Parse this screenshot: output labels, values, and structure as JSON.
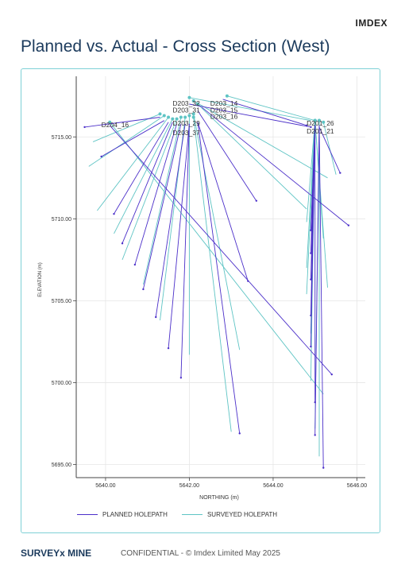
{
  "header": {
    "brand": "IMDEX",
    "title": "Planned vs. Actual - Cross Section (West)"
  },
  "footer": {
    "brand": "SURVEYx MINE",
    "text": "CONFIDENTIAL - © Imdex Limited May 2025"
  },
  "legend": {
    "planned": "PLANNED HOLEPATH",
    "surveyed": "SURVEYED HOLEPATH"
  },
  "colors": {
    "planned": "#4b2fc9",
    "surveyed": "#5ec4c4",
    "grid": "#e6e6e6",
    "axis": "#444444",
    "frame": "#7fd1d6"
  },
  "chart_data": {
    "type": "line",
    "title": "",
    "xlabel": "NORTHING (m)",
    "ylabel": "ELEVATION (m)",
    "xlim": [
      5639.3,
      5646.2
    ],
    "ylim": [
      5694.2,
      5718.7
    ],
    "xticks": [
      5640.0,
      5642.0,
      5644.0,
      5646.0
    ],
    "yticks": [
      5695.0,
      5700.0,
      5705.0,
      5710.0,
      5715.0
    ],
    "xtick_labels": [
      "5640.00",
      "5642.00",
      "5644.00",
      "5646.00"
    ],
    "ytick_labels": [
      "5695.00",
      "5700.00",
      "5705.00",
      "5710.00",
      "5715.00"
    ],
    "grid": true,
    "legend_position": "bottom",
    "collar_labels": [
      {
        "text": "D203_32",
        "x": 5641.6,
        "y": 5716.9
      },
      {
        "text": "D203_14",
        "x": 5642.5,
        "y": 5716.9
      },
      {
        "text": "D203_31",
        "x": 5641.6,
        "y": 5716.5
      },
      {
        "text": "D203_15",
        "x": 5642.5,
        "y": 5716.5
      },
      {
        "text": "D203_16",
        "x": 5642.5,
        "y": 5716.1
      },
      {
        "text": "D204_16",
        "x": 5639.9,
        "y": 5715.6
      },
      {
        "text": "D203_29",
        "x": 5641.6,
        "y": 5715.7
      },
      {
        "text": "D201_26",
        "x": 5644.8,
        "y": 5715.7
      },
      {
        "text": "D201_21",
        "x": 5644.8,
        "y": 5715.2
      },
      {
        "text": "D203_37",
        "x": 5641.6,
        "y": 5715.1
      }
    ],
    "series": [
      {
        "name": "PLANNED HOLEPATH",
        "paths": [
          [
            [
              5642.3,
              5716.8
            ],
            [
              5645.8,
              5709.6
            ]
          ],
          [
            [
              5642.2,
              5716.6
            ],
            [
              5643.6,
              5711.1
            ]
          ],
          [
            [
              5642.2,
              5715.9
            ],
            [
              5643.4,
              5706.2
            ]
          ],
          [
            [
              5642.2,
              5715.9
            ],
            [
              5643.2,
              5696.9
            ]
          ],
          [
            [
              5642.0,
              5715.8
            ],
            [
              5641.8,
              5700.3
            ]
          ],
          [
            [
              5642.0,
              5715.8
            ],
            [
              5641.5,
              5702.1
            ]
          ],
          [
            [
              5641.9,
              5715.8
            ],
            [
              5641.2,
              5704.0
            ]
          ],
          [
            [
              5641.8,
              5715.8
            ],
            [
              5640.9,
              5705.7
            ]
          ],
          [
            [
              5641.7,
              5715.8
            ],
            [
              5640.7,
              5707.2
            ]
          ],
          [
            [
              5641.6,
              5715.9
            ],
            [
              5640.4,
              5708.5
            ]
          ],
          [
            [
              5641.5,
              5715.9
            ],
            [
              5640.2,
              5710.3
            ]
          ],
          [
            [
              5641.4,
              5716.0
            ],
            [
              5639.9,
              5713.8
            ]
          ],
          [
            [
              5641.3,
              5716.2
            ],
            [
              5639.5,
              5715.6
            ]
          ],
          [
            [
              5640.1,
              5715.7
            ],
            [
              5645.4,
              5700.5
            ]
          ],
          [
            [
              5645.1,
              5715.7
            ],
            [
              5645.2,
              5694.8
            ]
          ],
          [
            [
              5645.1,
              5715.7
            ],
            [
              5645.0,
              5696.8
            ]
          ],
          [
            [
              5645.0,
              5715.7
            ],
            [
              5645.0,
              5698.8
            ]
          ],
          [
            [
              5645.0,
              5715.7
            ],
            [
              5644.9,
              5702.2
            ]
          ],
          [
            [
              5645.0,
              5715.7
            ],
            [
              5644.9,
              5704.1
            ]
          ],
          [
            [
              5645.0,
              5715.7
            ],
            [
              5644.9,
              5706.3
            ]
          ],
          [
            [
              5645.0,
              5715.7
            ],
            [
              5644.9,
              5707.9
            ]
          ],
          [
            [
              5645.0,
              5715.7
            ],
            [
              5644.9,
              5709.3
            ]
          ],
          [
            [
              5642.0,
              5717.0
            ],
            [
              5644.9,
              5715.6
            ]
          ],
          [
            [
              5642.8,
              5717.3
            ],
            [
              5644.8,
              5715.7
            ]
          ],
          [
            [
              5645.1,
              5715.6
            ],
            [
              5645.6,
              5712.8
            ]
          ]
        ]
      },
      {
        "name": "SURVEYED HOLEPATH",
        "paths": [
          [
            [
              5642.1,
              5717.2
            ],
            [
              5645.3,
              5712.5
            ]
          ],
          [
            [
              5642.2,
              5717.0
            ],
            [
              5644.8,
              5710.6
            ]
          ],
          [
            [
              5642.1,
              5716.4
            ],
            [
              5643.2,
              5702.0
            ]
          ],
          [
            [
              5642.1,
              5716.2
            ],
            [
              5643.0,
              5697.0
            ]
          ],
          [
            [
              5642.0,
              5716.3
            ],
            [
              5642.0,
              5701.7
            ]
          ],
          [
            [
              5641.9,
              5716.2
            ],
            [
              5641.3,
              5703.8
            ]
          ],
          [
            [
              5641.8,
              5716.2
            ],
            [
              5640.9,
              5706.0
            ]
          ],
          [
            [
              5641.7,
              5716.1
            ],
            [
              5640.4,
              5707.5
            ]
          ],
          [
            [
              5641.6,
              5716.1
            ],
            [
              5640.2,
              5709.1
            ]
          ],
          [
            [
              5641.5,
              5716.2
            ],
            [
              5639.8,
              5710.5
            ]
          ],
          [
            [
              5641.4,
              5716.3
            ],
            [
              5639.6,
              5713.2
            ]
          ],
          [
            [
              5641.3,
              5716.4
            ],
            [
              5639.7,
              5714.7
            ]
          ],
          [
            [
              5640.1,
              5715.9
            ],
            [
              5645.2,
              5699.3
            ]
          ],
          [
            [
              5645.1,
              5716.0
            ],
            [
              5645.1,
              5695.5
            ]
          ],
          [
            [
              5645.1,
              5716.0
            ],
            [
              5645.0,
              5697.2
            ]
          ],
          [
            [
              5645.0,
              5716.0
            ],
            [
              5644.9,
              5700.1
            ]
          ],
          [
            [
              5645.0,
              5716.0
            ],
            [
              5644.9,
              5703.0
            ]
          ],
          [
            [
              5645.0,
              5716.0
            ],
            [
              5644.8,
              5705.4
            ]
          ],
          [
            [
              5645.0,
              5716.0
            ],
            [
              5644.8,
              5707.0
            ]
          ],
          [
            [
              5645.0,
              5716.0
            ],
            [
              5645.2,
              5708.8
            ]
          ],
          [
            [
              5645.0,
              5716.0
            ],
            [
              5645.3,
              5705.8
            ]
          ],
          [
            [
              5642.9,
              5717.5
            ],
            [
              5645.0,
              5716.0
            ]
          ],
          [
            [
              5642.0,
              5717.4
            ],
            [
              5644.9,
              5716.0
            ]
          ],
          [
            [
              5645.2,
              5715.9
            ],
            [
              5645.5,
              5712.7
            ]
          ],
          [
            [
              5645.0,
              5716.0
            ],
            [
              5644.8,
              5709.8
            ]
          ]
        ]
      }
    ]
  }
}
